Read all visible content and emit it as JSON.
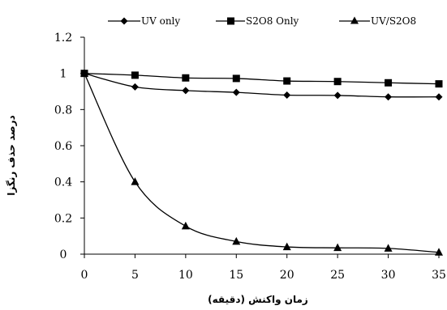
{
  "chart_data": {
    "type": "line",
    "x": [
      0,
      5,
      10,
      15,
      20,
      25,
      30,
      35
    ],
    "series": [
      {
        "name": "UV only",
        "marker": "diamond",
        "color": "#000000",
        "values": [
          1.0,
          0.925,
          0.905,
          0.895,
          0.88,
          0.878,
          0.87,
          0.87
        ]
      },
      {
        "name": "S2O8 Only",
        "marker": "square",
        "color": "#000000",
        "values": [
          1.0,
          0.99,
          0.975,
          0.972,
          0.958,
          0.955,
          0.948,
          0.942
        ]
      },
      {
        "name": "UV/S2O8",
        "marker": "triangle",
        "color": "#000000",
        "values": [
          1.0,
          0.4,
          0.155,
          0.07,
          0.04,
          0.035,
          0.032,
          0.01
        ]
      }
    ],
    "xlabel": "زمان واکنش (دقیقه)",
    "ylabel": "درصد حذف رنگزا",
    "xlim": [
      0,
      35
    ],
    "ylim": [
      0,
      1.2
    ],
    "xticks": [
      "0",
      "5",
      "10",
      "15",
      "20",
      "25",
      "30",
      "35"
    ],
    "yticks": [
      "0",
      "0.2",
      "0.4",
      "0.6",
      "0.8",
      "1",
      "1.2"
    ],
    "grid": false,
    "legend": "top"
  }
}
